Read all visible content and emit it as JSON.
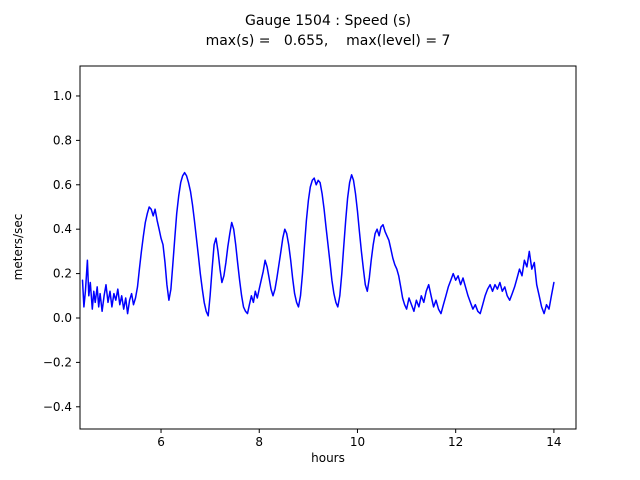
{
  "figure": {
    "background": "#ffffff"
  },
  "chart_data": {
    "type": "line",
    "title": "Gauge 1504 : Speed (s)",
    "subtitle": "max(s) =   0.655,    max(level) = 7",
    "xlabel": "hours",
    "ylabel": "meters/sec",
    "xlim": [
      4.35,
      14.45
    ],
    "ylim": [
      -0.5,
      1.135
    ],
    "xticks": [
      6,
      8,
      10,
      12,
      14
    ],
    "yticks": [
      -0.4,
      -0.2,
      0.0,
      0.2,
      0.4,
      0.6,
      0.8,
      1.0
    ],
    "grid": false,
    "legend": "none",
    "line_color": "#0000ff",
    "line_width": 1.5,
    "max_s": 0.655,
    "max_level": 7,
    "series": [
      {
        "name": "speed",
        "points": [
          [
            4.4,
            0.17
          ],
          [
            4.43,
            0.05
          ],
          [
            4.46,
            0.12
          ],
          [
            4.5,
            0.26
          ],
          [
            4.53,
            0.1
          ],
          [
            4.56,
            0.16
          ],
          [
            4.6,
            0.04
          ],
          [
            4.63,
            0.12
          ],
          [
            4.66,
            0.07
          ],
          [
            4.7,
            0.14
          ],
          [
            4.73,
            0.05
          ],
          [
            4.76,
            0.11
          ],
          [
            4.8,
            0.03
          ],
          [
            4.84,
            0.1
          ],
          [
            4.88,
            0.15
          ],
          [
            4.92,
            0.07
          ],
          [
            4.96,
            0.12
          ],
          [
            5.0,
            0.05
          ],
          [
            5.04,
            0.11
          ],
          [
            5.08,
            0.08
          ],
          [
            5.12,
            0.13
          ],
          [
            5.16,
            0.06
          ],
          [
            5.2,
            0.1
          ],
          [
            5.24,
            0.04
          ],
          [
            5.28,
            0.09
          ],
          [
            5.32,
            0.02
          ],
          [
            5.36,
            0.08
          ],
          [
            5.4,
            0.11
          ],
          [
            5.44,
            0.06
          ],
          [
            5.48,
            0.09
          ],
          [
            5.52,
            0.14
          ],
          [
            5.56,
            0.22
          ],
          [
            5.6,
            0.3
          ],
          [
            5.64,
            0.37
          ],
          [
            5.68,
            0.43
          ],
          [
            5.72,
            0.47
          ],
          [
            5.76,
            0.5
          ],
          [
            5.8,
            0.49
          ],
          [
            5.84,
            0.46
          ],
          [
            5.88,
            0.49
          ],
          [
            5.92,
            0.44
          ],
          [
            5.96,
            0.4
          ],
          [
            6.0,
            0.36
          ],
          [
            6.04,
            0.33
          ],
          [
            6.08,
            0.25
          ],
          [
            6.12,
            0.15
          ],
          [
            6.16,
            0.08
          ],
          [
            6.2,
            0.13
          ],
          [
            6.24,
            0.24
          ],
          [
            6.28,
            0.36
          ],
          [
            6.32,
            0.47
          ],
          [
            6.36,
            0.55
          ],
          [
            6.4,
            0.61
          ],
          [
            6.44,
            0.64
          ],
          [
            6.48,
            0.655
          ],
          [
            6.52,
            0.64
          ],
          [
            6.56,
            0.61
          ],
          [
            6.6,
            0.57
          ],
          [
            6.64,
            0.51
          ],
          [
            6.68,
            0.44
          ],
          [
            6.72,
            0.36
          ],
          [
            6.76,
            0.28
          ],
          [
            6.8,
            0.2
          ],
          [
            6.84,
            0.13
          ],
          [
            6.88,
            0.07
          ],
          [
            6.92,
            0.03
          ],
          [
            6.96,
            0.01
          ],
          [
            7.0,
            0.1
          ],
          [
            7.04,
            0.22
          ],
          [
            7.08,
            0.33
          ],
          [
            7.12,
            0.36
          ],
          [
            7.16,
            0.3
          ],
          [
            7.2,
            0.22
          ],
          [
            7.24,
            0.16
          ],
          [
            7.28,
            0.19
          ],
          [
            7.32,
            0.25
          ],
          [
            7.36,
            0.32
          ],
          [
            7.4,
            0.38
          ],
          [
            7.44,
            0.43
          ],
          [
            7.48,
            0.4
          ],
          [
            7.52,
            0.33
          ],
          [
            7.56,
            0.25
          ],
          [
            7.6,
            0.17
          ],
          [
            7.64,
            0.1
          ],
          [
            7.68,
            0.05
          ],
          [
            7.72,
            0.03
          ],
          [
            7.76,
            0.02
          ],
          [
            7.8,
            0.06
          ],
          [
            7.84,
            0.1
          ],
          [
            7.88,
            0.07
          ],
          [
            7.92,
            0.12
          ],
          [
            7.96,
            0.09
          ],
          [
            8.0,
            0.13
          ],
          [
            8.04,
            0.17
          ],
          [
            8.08,
            0.21
          ],
          [
            8.12,
            0.26
          ],
          [
            8.16,
            0.23
          ],
          [
            8.2,
            0.18
          ],
          [
            8.24,
            0.13
          ],
          [
            8.28,
            0.1
          ],
          [
            8.32,
            0.13
          ],
          [
            8.36,
            0.18
          ],
          [
            8.4,
            0.24
          ],
          [
            8.44,
            0.3
          ],
          [
            8.48,
            0.36
          ],
          [
            8.52,
            0.4
          ],
          [
            8.56,
            0.38
          ],
          [
            8.6,
            0.33
          ],
          [
            8.64,
            0.26
          ],
          [
            8.68,
            0.18
          ],
          [
            8.72,
            0.11
          ],
          [
            8.76,
            0.07
          ],
          [
            8.8,
            0.05
          ],
          [
            8.84,
            0.1
          ],
          [
            8.88,
            0.2
          ],
          [
            8.92,
            0.32
          ],
          [
            8.96,
            0.44
          ],
          [
            9.0,
            0.53
          ],
          [
            9.04,
            0.59
          ],
          [
            9.08,
            0.62
          ],
          [
            9.12,
            0.63
          ],
          [
            9.16,
            0.6
          ],
          [
            9.2,
            0.62
          ],
          [
            9.24,
            0.61
          ],
          [
            9.28,
            0.56
          ],
          [
            9.32,
            0.49
          ],
          [
            9.36,
            0.41
          ],
          [
            9.4,
            0.33
          ],
          [
            9.44,
            0.25
          ],
          [
            9.48,
            0.17
          ],
          [
            9.52,
            0.11
          ],
          [
            9.56,
            0.07
          ],
          [
            9.6,
            0.05
          ],
          [
            9.64,
            0.1
          ],
          [
            9.68,
            0.2
          ],
          [
            9.72,
            0.32
          ],
          [
            9.76,
            0.44
          ],
          [
            9.8,
            0.54
          ],
          [
            9.84,
            0.61
          ],
          [
            9.88,
            0.645
          ],
          [
            9.92,
            0.62
          ],
          [
            9.96,
            0.56
          ],
          [
            10.0,
            0.48
          ],
          [
            10.04,
            0.39
          ],
          [
            10.08,
            0.3
          ],
          [
            10.12,
            0.22
          ],
          [
            10.16,
            0.15
          ],
          [
            10.2,
            0.12
          ],
          [
            10.24,
            0.18
          ],
          [
            10.28,
            0.26
          ],
          [
            10.32,
            0.33
          ],
          [
            10.36,
            0.38
          ],
          [
            10.4,
            0.4
          ],
          [
            10.44,
            0.37
          ],
          [
            10.48,
            0.41
          ],
          [
            10.52,
            0.42
          ],
          [
            10.56,
            0.39
          ],
          [
            10.6,
            0.37
          ],
          [
            10.64,
            0.35
          ],
          [
            10.68,
            0.31
          ],
          [
            10.72,
            0.27
          ],
          [
            10.76,
            0.24
          ],
          [
            10.8,
            0.22
          ],
          [
            10.84,
            0.19
          ],
          [
            10.88,
            0.14
          ],
          [
            10.92,
            0.09
          ],
          [
            10.96,
            0.06
          ],
          [
            11.0,
            0.04
          ],
          [
            11.05,
            0.09
          ],
          [
            11.1,
            0.06
          ],
          [
            11.15,
            0.03
          ],
          [
            11.2,
            0.08
          ],
          [
            11.25,
            0.05
          ],
          [
            11.3,
            0.1
          ],
          [
            11.35,
            0.07
          ],
          [
            11.4,
            0.12
          ],
          [
            11.45,
            0.15
          ],
          [
            11.5,
            0.1
          ],
          [
            11.55,
            0.05
          ],
          [
            11.6,
            0.08
          ],
          [
            11.65,
            0.04
          ],
          [
            11.7,
            0.02
          ],
          [
            11.75,
            0.06
          ],
          [
            11.8,
            0.1
          ],
          [
            11.85,
            0.14
          ],
          [
            11.9,
            0.17
          ],
          [
            11.95,
            0.2
          ],
          [
            12.0,
            0.17
          ],
          [
            12.05,
            0.19
          ],
          [
            12.1,
            0.15
          ],
          [
            12.15,
            0.18
          ],
          [
            12.2,
            0.14
          ],
          [
            12.25,
            0.1
          ],
          [
            12.3,
            0.07
          ],
          [
            12.35,
            0.04
          ],
          [
            12.4,
            0.06
          ],
          [
            12.45,
            0.03
          ],
          [
            12.5,
            0.02
          ],
          [
            12.55,
            0.06
          ],
          [
            12.6,
            0.1
          ],
          [
            12.65,
            0.13
          ],
          [
            12.7,
            0.15
          ],
          [
            12.75,
            0.12
          ],
          [
            12.8,
            0.15
          ],
          [
            12.85,
            0.13
          ],
          [
            12.9,
            0.16
          ],
          [
            12.95,
            0.12
          ],
          [
            13.0,
            0.14
          ],
          [
            13.05,
            0.1
          ],
          [
            13.1,
            0.08
          ],
          [
            13.15,
            0.11
          ],
          [
            13.2,
            0.14
          ],
          [
            13.25,
            0.18
          ],
          [
            13.3,
            0.22
          ],
          [
            13.35,
            0.19
          ],
          [
            13.4,
            0.26
          ],
          [
            13.45,
            0.23
          ],
          [
            13.5,
            0.3
          ],
          [
            13.55,
            0.22
          ],
          [
            13.6,
            0.25
          ],
          [
            13.65,
            0.15
          ],
          [
            13.7,
            0.1
          ],
          [
            13.75,
            0.05
          ],
          [
            13.8,
            0.02
          ],
          [
            13.85,
            0.06
          ],
          [
            13.9,
            0.04
          ],
          [
            13.95,
            0.1
          ],
          [
            14.0,
            0.16
          ]
        ]
      }
    ]
  }
}
